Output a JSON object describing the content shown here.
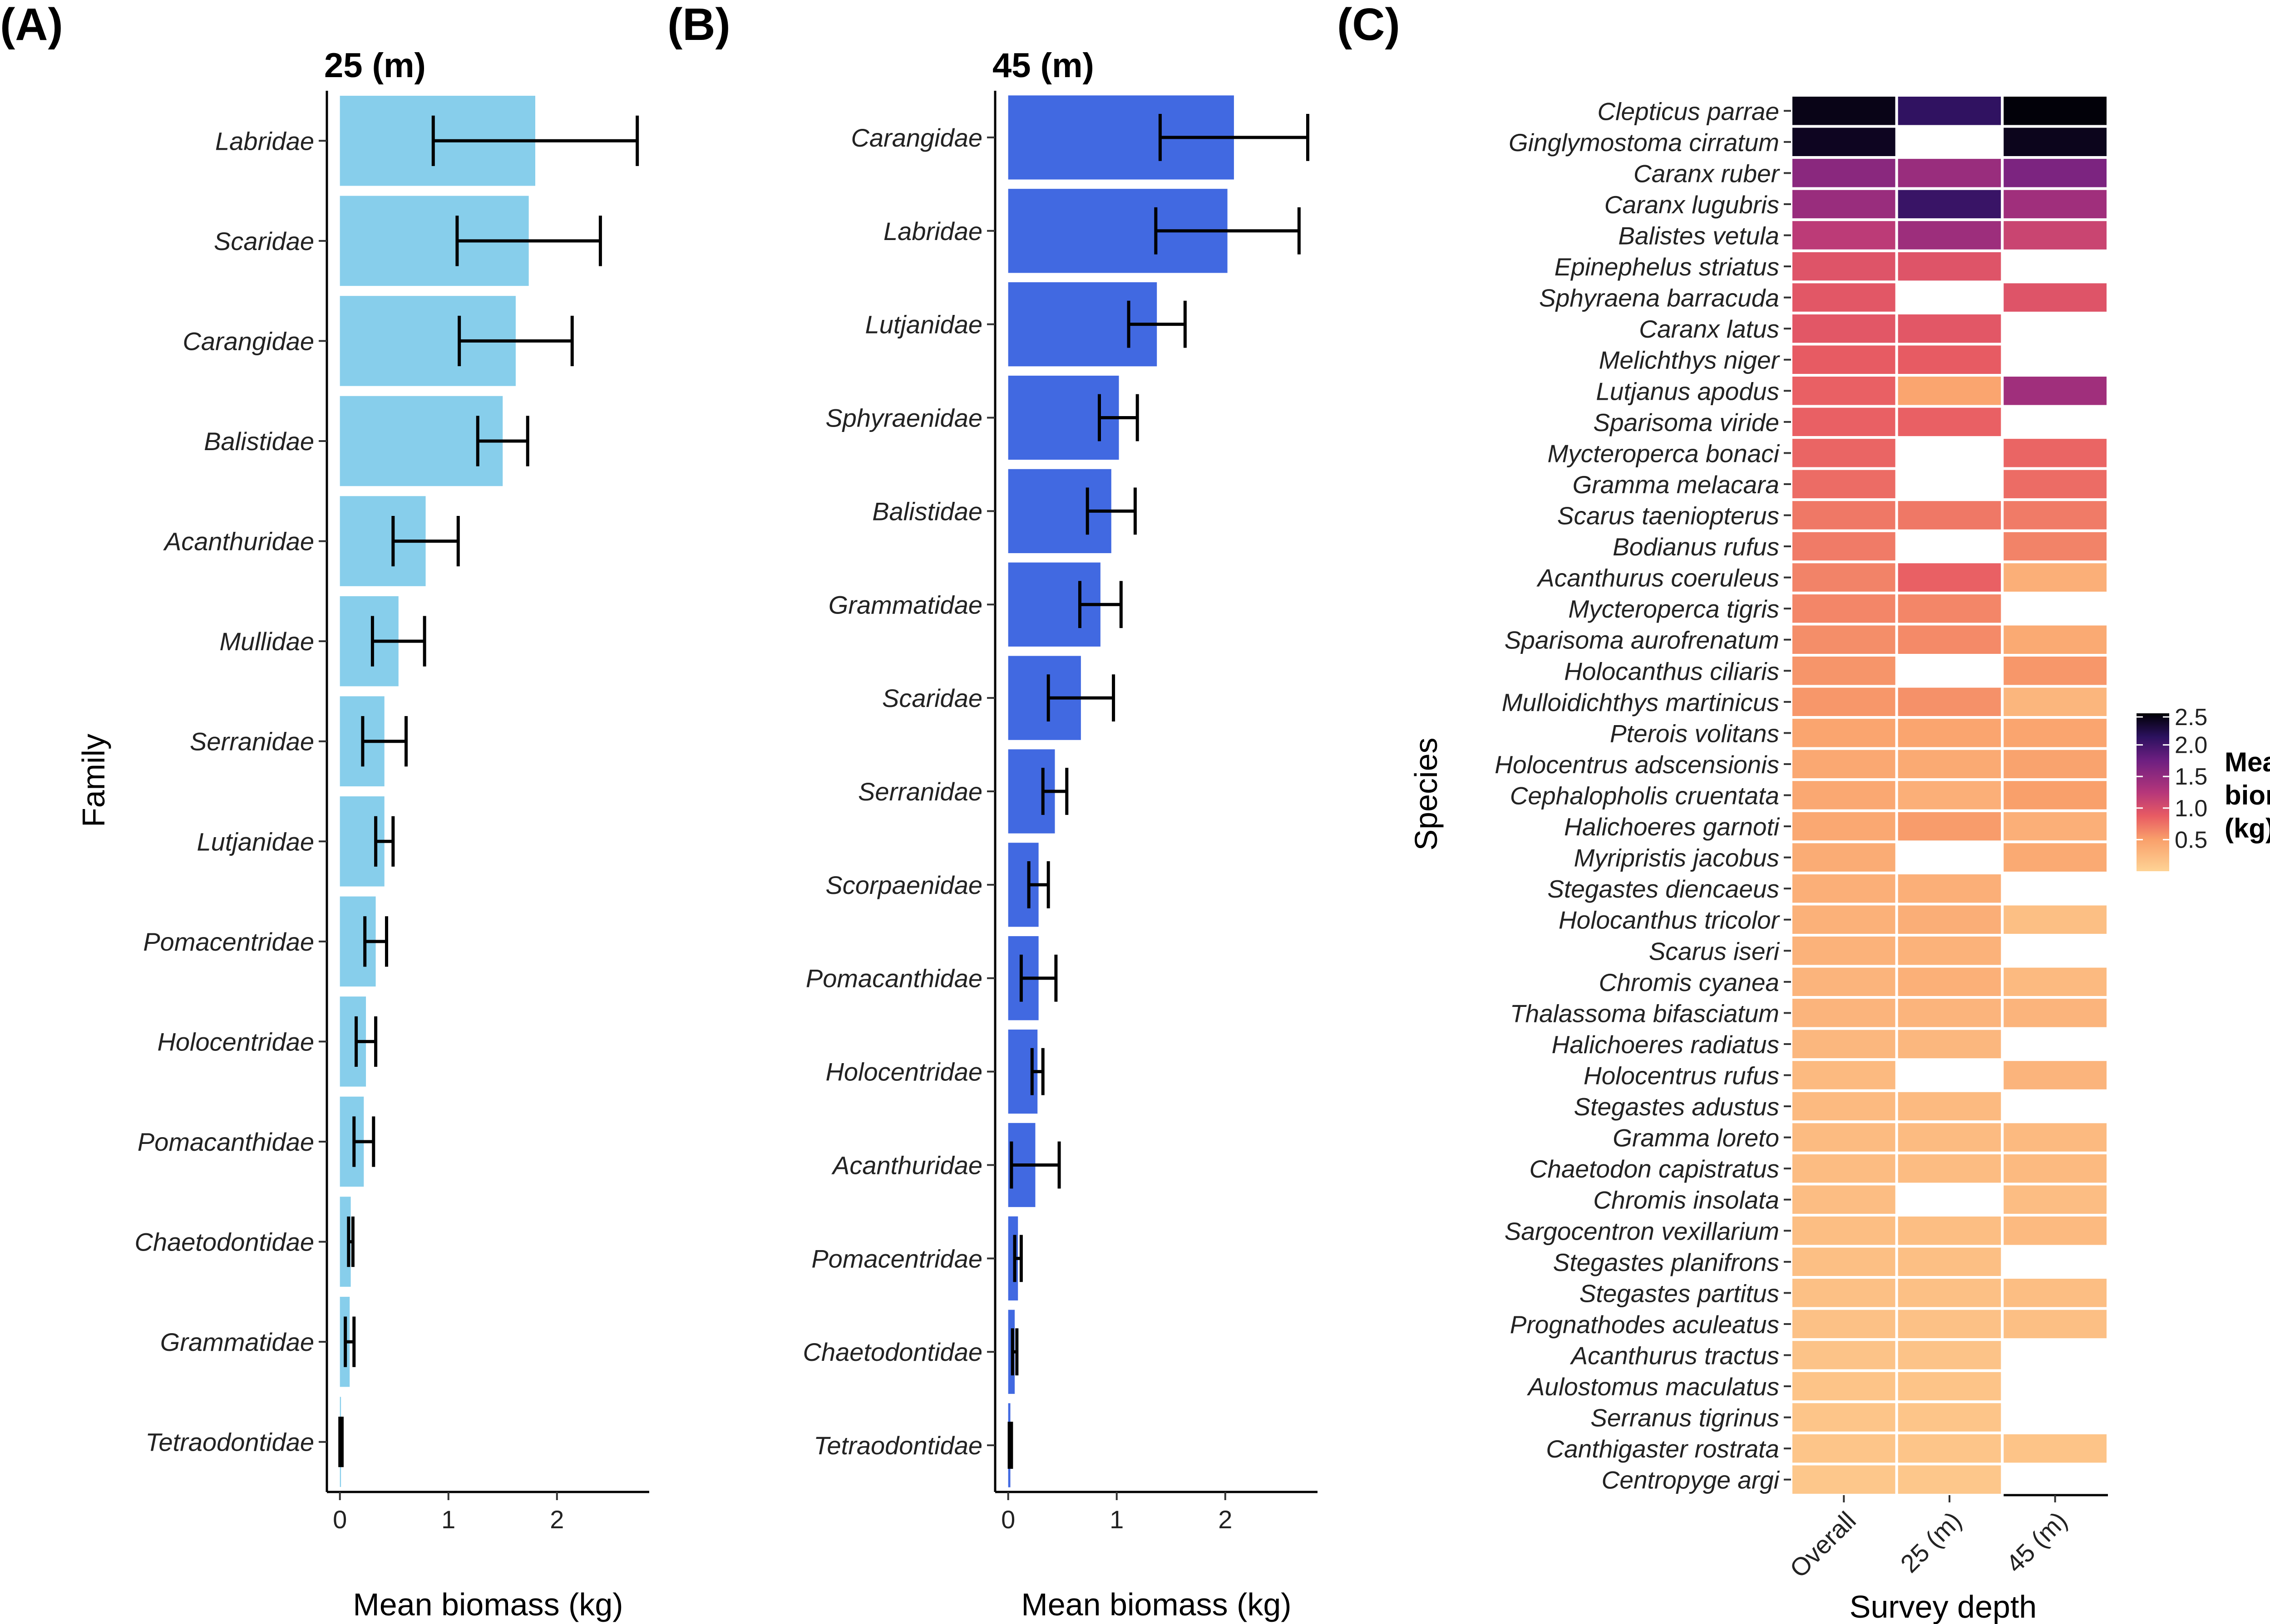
{
  "panels": {
    "a": {
      "letter": "(A)",
      "title": "25 (m)",
      "xlabel": "Mean biomass (kg)",
      "ylabel": "Family",
      "ticks": [
        "0",
        "1",
        "2"
      ]
    },
    "b": {
      "letter": "(B)",
      "title": "45 (m)",
      "xlabel": "Mean biomass (kg)",
      "ticks": [
        "0",
        "1",
        "2"
      ]
    },
    "c": {
      "letter": "(C)",
      "xlabel": "Survey depth",
      "ylabel": "Species",
      "legend": {
        "line1": "Mean",
        "line2": "biomass",
        "line3": "(kg)",
        "ticks": [
          "2.5",
          "2.0",
          "1.5",
          "1.0",
          "0.5"
        ]
      }
    }
  },
  "colors": {
    "bar_a": "#87ceeb",
    "bar_b": "#4169e1",
    "errorbar": "#000000",
    "heat_low": "#fcfdbf",
    "heat_high": "#000004"
  },
  "chart_data": [
    {
      "type": "bar",
      "orientation": "horizontal",
      "title": "25 (m)",
      "xlabel": "Mean biomass (kg)",
      "ylabel": "Family",
      "xlim": [
        -0.12,
        2.85
      ],
      "categories": [
        "Labridae",
        "Scaridae",
        "Carangidae",
        "Balistidae",
        "Acanthuridae",
        "Mullidae",
        "Serranidae",
        "Lutjanidae",
        "Pomacentridae",
        "Holocentridae",
        "Pomacanthidae",
        "Chaetodontidae",
        "Grammatidae",
        "Tetraodontidae"
      ],
      "values": [
        1.8,
        1.74,
        1.62,
        1.5,
        0.79,
        0.54,
        0.41,
        0.41,
        0.33,
        0.24,
        0.22,
        0.1,
        0.09,
        0.01
      ],
      "error_low": [
        0.86,
        1.08,
        1.1,
        1.27,
        0.49,
        0.3,
        0.21,
        0.33,
        0.23,
        0.15,
        0.13,
        0.08,
        0.05,
        0.0
      ],
      "error_high": [
        2.74,
        2.4,
        2.14,
        1.73,
        1.09,
        0.78,
        0.61,
        0.49,
        0.43,
        0.33,
        0.31,
        0.12,
        0.13,
        0.02
      ]
    },
    {
      "type": "bar",
      "orientation": "horizontal",
      "title": "45 (m)",
      "xlabel": "Mean biomass (kg)",
      "xlim": [
        -0.12,
        2.85
      ],
      "categories": [
        "Carangidae",
        "Labridae",
        "Lutjanidae",
        "Sphyraenidae",
        "Balistidae",
        "Grammatidae",
        "Scaridae",
        "Serranidae",
        "Scorpaenidae",
        "Pomacanthidae",
        "Holocentridae",
        "Acanthuridae",
        "Pomacentridae",
        "Chaetodontidae",
        "Tetraodontidae"
      ],
      "values": [
        2.08,
        2.02,
        1.37,
        1.02,
        0.95,
        0.85,
        0.67,
        0.43,
        0.28,
        0.28,
        0.27,
        0.25,
        0.09,
        0.06,
        0.02
      ],
      "error_low": [
        1.4,
        1.36,
        1.11,
        0.84,
        0.73,
        0.66,
        0.37,
        0.32,
        0.19,
        0.12,
        0.22,
        0.03,
        0.06,
        0.04,
        0.01
      ],
      "error_high": [
        2.76,
        2.68,
        1.63,
        1.19,
        1.17,
        1.04,
        0.97,
        0.54,
        0.37,
        0.44,
        0.32,
        0.47,
        0.12,
        0.08,
        0.03
      ]
    },
    {
      "type": "heatmap",
      "xlabel": "Survey depth",
      "ylabel": "Species",
      "legend_title": "Mean biomass (kg)",
      "value_range": [
        0,
        2.5
      ],
      "columns": [
        "Overall",
        "25 (m)",
        "45 (m)"
      ],
      "rows": [
        "Clepticus parrae",
        "Ginglymostoma cirratum",
        "Caranx ruber",
        "Caranx lugubris",
        "Balistes vetula",
        "Epinephelus striatus",
        "Sphyraena barracuda",
        "Caranx latus",
        "Melichthys niger",
        "Lutjanus apodus",
        "Sparisoma viride",
        "Mycteroperca bonaci",
        "Gramma melacara",
        "Scarus taeniopterus",
        "Bodianus rufus",
        "Acanthurus coeruleus",
        "Mycteroperca tigris",
        "Sparisoma aurofrenatum",
        "Holocanthus ciliaris",
        "Mulloidichthys martinicus",
        "Pterois volitans",
        "Holocentrus adscensionis",
        "Cephalopholis cruentata",
        "Halichoeres garnoti",
        "Myripristis jacobus",
        "Stegastes diencaeus",
        "Holocanthus tricolor",
        "Scarus iseri",
        "Chromis cyanea",
        "Thalassoma bifasciatum",
        "Halichoeres radiatus",
        "Holocentrus rufus",
        "Stegastes adustus",
        "Gramma loreto",
        "Chaetodon capistratus",
        "Chromis insolata",
        "Sargocentron vexillarium",
        "Stegastes planifrons",
        "Stegastes partitus",
        "Prognathodes aculeatus",
        "Acanthurus tractus",
        "Aulostomus maculatus",
        "Serranus tigrinus",
        "Canthigaster rostrata",
        "Centropyge argi"
      ],
      "values": [
        [
          2.42,
          2.1,
          2.48
        ],
        [
          2.38,
          null,
          2.4
        ],
        [
          1.55,
          1.45,
          1.65
        ],
        [
          1.45,
          2.05,
          1.4
        ],
        [
          1.2,
          1.42,
          1.1
        ],
        [
          0.95,
          0.95,
          null
        ],
        [
          0.92,
          null,
          0.95
        ],
        [
          0.92,
          0.92,
          null
        ],
        [
          0.88,
          0.88,
          null
        ],
        [
          0.85,
          0.45,
          1.4
        ],
        [
          0.85,
          0.85,
          null
        ],
        [
          0.82,
          null,
          0.82
        ],
        [
          0.78,
          null,
          0.78
        ],
        [
          0.72,
          0.72,
          0.7
        ],
        [
          0.7,
          null,
          0.66
        ],
        [
          0.66,
          0.85,
          0.35
        ],
        [
          0.64,
          0.64,
          null
        ],
        [
          0.6,
          0.62,
          0.4
        ],
        [
          0.56,
          null,
          0.55
        ],
        [
          0.55,
          0.58,
          0.28
        ],
        [
          0.45,
          0.45,
          0.45
        ],
        [
          0.42,
          0.4,
          0.47
        ],
        [
          0.42,
          0.35,
          0.5
        ],
        [
          0.42,
          0.52,
          0.35
        ],
        [
          0.38,
          null,
          0.4
        ],
        [
          0.35,
          0.35,
          null
        ],
        [
          0.33,
          0.36,
          0.2
        ],
        [
          0.32,
          0.32,
          null
        ],
        [
          0.3,
          0.34,
          0.25
        ],
        [
          0.3,
          0.3,
          0.3
        ],
        [
          0.27,
          0.27,
          null
        ],
        [
          0.25,
          null,
          0.3
        ],
        [
          0.25,
          0.25,
          null
        ],
        [
          0.24,
          0.24,
          0.25
        ],
        [
          0.23,
          0.23,
          0.25
        ],
        [
          0.22,
          null,
          0.22
        ],
        [
          0.21,
          0.21,
          0.25
        ],
        [
          0.2,
          0.2,
          null
        ],
        [
          0.19,
          0.19,
          0.21
        ],
        [
          0.18,
          0.18,
          0.2
        ],
        [
          0.16,
          0.16,
          null
        ],
        [
          0.15,
          0.15,
          null
        ],
        [
          0.14,
          0.14,
          null
        ],
        [
          0.14,
          0.14,
          0.15
        ],
        [
          0.12,
          0.12,
          null
        ]
      ]
    }
  ]
}
